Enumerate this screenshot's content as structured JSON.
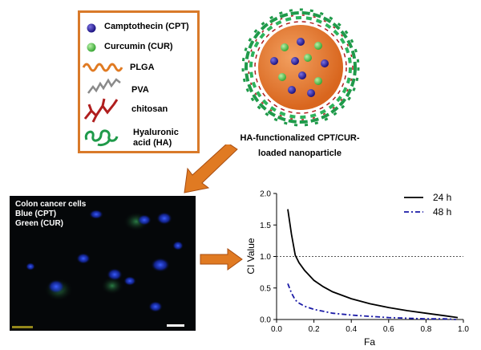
{
  "legend": {
    "items": [
      {
        "label": "Camptothecin (CPT)",
        "icon": "blue-sphere"
      },
      {
        "label": "Curcumin (CUR)",
        "icon": "green-sphere"
      },
      {
        "label": "PLGA",
        "icon": "orange-wave"
      },
      {
        "label": "PVA",
        "icon": "gray-squiggle"
      },
      {
        "label": "chitosan",
        "icon": "red-branch"
      },
      {
        "label": "Hyaluronic",
        "icon": "green-coil"
      },
      {
        "label": "acid (HA)",
        "icon": ""
      }
    ],
    "colors": {
      "border": "#d97a2a",
      "cpt": "#2b1fa0",
      "cur": "#4fc24a",
      "plga": "#e07a22",
      "pva": "#8a8a8a",
      "chitosan": "#b01e1e",
      "ha": "#1f9a4a"
    }
  },
  "nanoparticle": {
    "caption_line1": "HA-functionalized CPT/CUR-",
    "caption_line2": "loaded nanoparticle"
  },
  "microscopy": {
    "line1": "Colon cancer cells",
    "line2": "Blue (CPT)",
    "line3": "Green (CUR)"
  },
  "chart_data": {
    "type": "line",
    "xlabel": "Fa",
    "ylabel": "CI Value",
    "xlim": [
      0.0,
      1.0
    ],
    "ylim": [
      0.0,
      2.0
    ],
    "xticks": [
      "0.0",
      "0.2",
      "0.4",
      "0.6",
      "0.8",
      "1.0"
    ],
    "yticks": [
      "0.0",
      "0.5",
      "1.0",
      "1.5",
      "2.0"
    ],
    "reference_line": 1.0,
    "legend_position": "top-right",
    "series": [
      {
        "name": "24 h",
        "style": "solid",
        "color": "#000000",
        "x": [
          0.06,
          0.08,
          0.1,
          0.12,
          0.15,
          0.2,
          0.25,
          0.3,
          0.4,
          0.5,
          0.6,
          0.7,
          0.8,
          0.9,
          0.97
        ],
        "y": [
          1.75,
          1.35,
          1.02,
          0.9,
          0.78,
          0.62,
          0.52,
          0.44,
          0.33,
          0.25,
          0.19,
          0.14,
          0.1,
          0.06,
          0.03
        ]
      },
      {
        "name": "48 h",
        "style": "dash-dot",
        "color": "#1a1aa6",
        "x": [
          0.06,
          0.08,
          0.1,
          0.12,
          0.15,
          0.2,
          0.25,
          0.3,
          0.4,
          0.5,
          0.6,
          0.7,
          0.8,
          0.9,
          0.96
        ],
        "y": [
          0.57,
          0.42,
          0.31,
          0.26,
          0.21,
          0.16,
          0.13,
          0.1,
          0.07,
          0.05,
          0.03,
          0.02,
          0.01,
          0.01,
          0.0
        ]
      }
    ]
  }
}
